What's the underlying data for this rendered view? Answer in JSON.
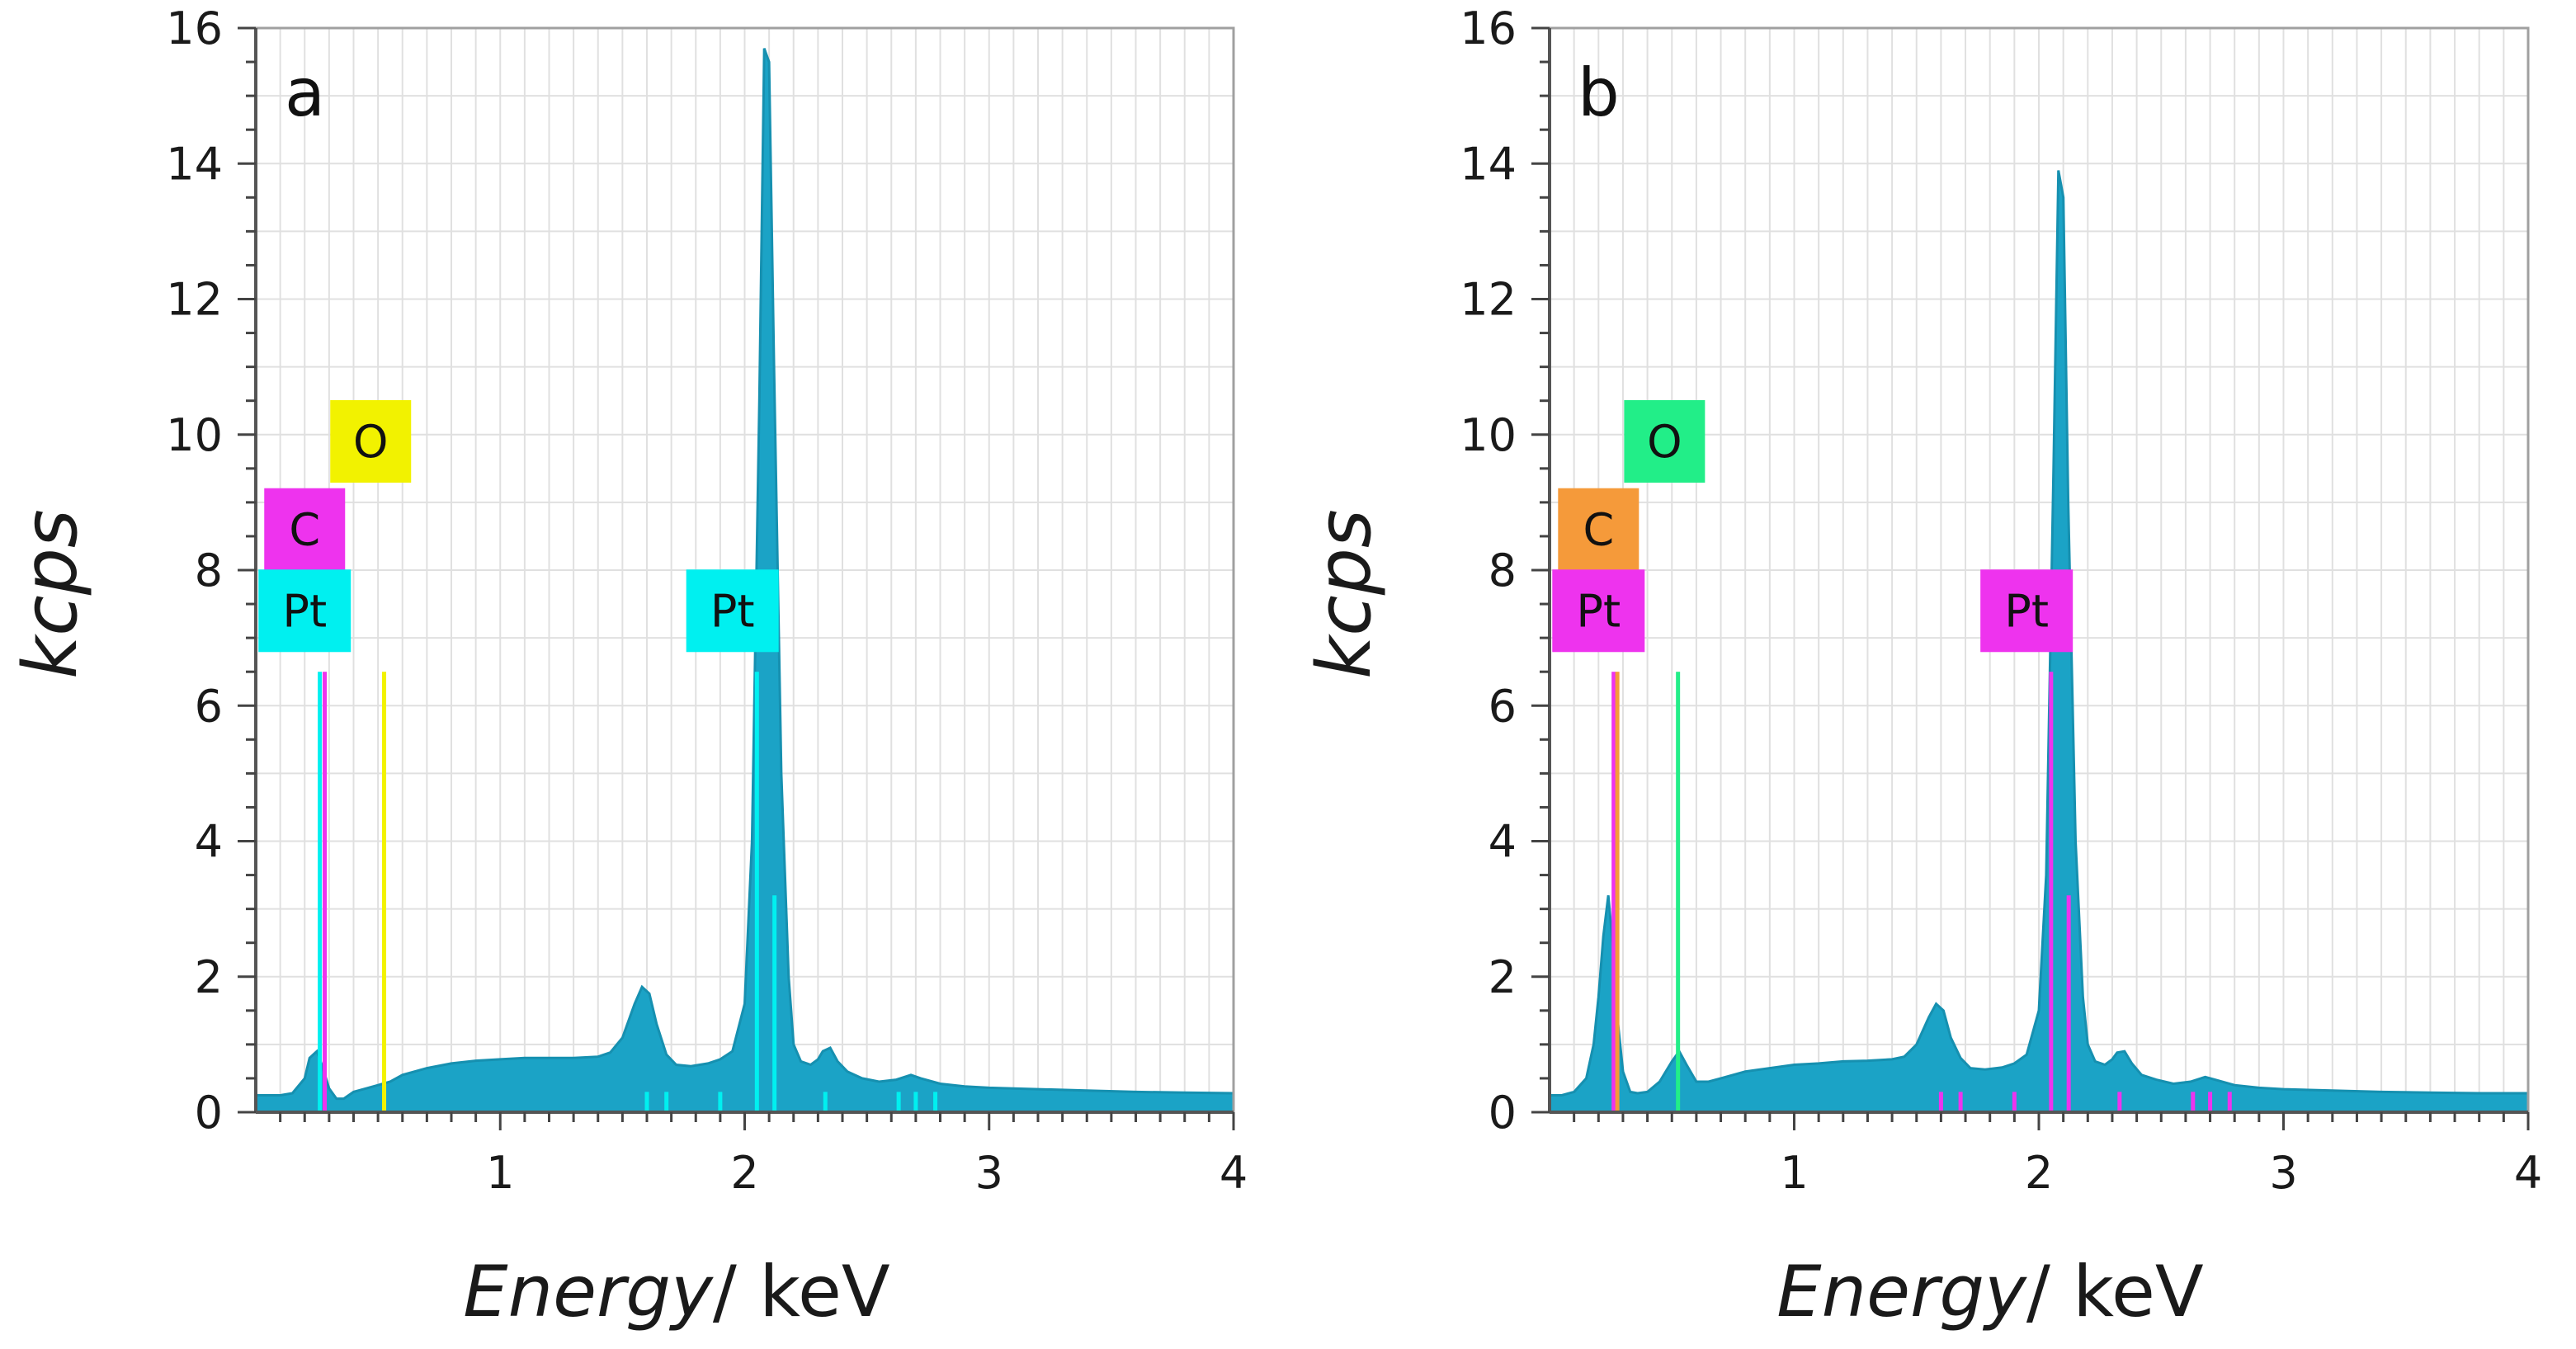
{
  "colors": {
    "spectrum": "#1ba3c6",
    "spectrum_edge": "#1690b0",
    "grid": "#e0e0e0",
    "plot_border": "#a0a0a0",
    "cyan": "#00f0f0",
    "magenta": "#ee33ee",
    "yellow": "#f2f200",
    "orange": "#f59a3a",
    "green": "#22ee88"
  },
  "chart_data": [
    {
      "type": "area",
      "panel_label": "a",
      "xlabel_italic": "Energy",
      "xlabel_unit": "/ keV",
      "ylabel": "kcps",
      "xlim": [
        0.0,
        4.0
      ],
      "ylim": [
        0,
        16
      ],
      "x_ticks": [
        "1",
        "2",
        "3",
        "4"
      ],
      "y_ticks": [
        "0",
        "2",
        "4",
        "6",
        "8",
        "10",
        "12",
        "14",
        "16"
      ],
      "spectrum": {
        "x": [
          0.0,
          0.05,
          0.1,
          0.15,
          0.2,
          0.22,
          0.25,
          0.27,
          0.3,
          0.33,
          0.36,
          0.4,
          0.45,
          0.5,
          0.55,
          0.6,
          0.7,
          0.8,
          0.9,
          1.0,
          1.1,
          1.2,
          1.3,
          1.4,
          1.45,
          1.5,
          1.55,
          1.58,
          1.61,
          1.64,
          1.68,
          1.72,
          1.78,
          1.85,
          1.9,
          1.95,
          2.0,
          2.03,
          2.06,
          2.08,
          2.1,
          2.12,
          2.15,
          2.18,
          2.2,
          2.23,
          2.27,
          2.3,
          2.32,
          2.35,
          2.38,
          2.42,
          2.48,
          2.55,
          2.62,
          2.68,
          2.72,
          2.8,
          2.9,
          3.0,
          3.2,
          3.4,
          3.6,
          3.8,
          4.0
        ],
        "y": [
          0.25,
          0.25,
          0.25,
          0.28,
          0.5,
          0.8,
          0.9,
          0.7,
          0.35,
          0.2,
          0.2,
          0.3,
          0.35,
          0.4,
          0.45,
          0.55,
          0.65,
          0.72,
          0.76,
          0.78,
          0.8,
          0.8,
          0.8,
          0.82,
          0.88,
          1.1,
          1.6,
          1.85,
          1.75,
          1.3,
          0.85,
          0.7,
          0.68,
          0.72,
          0.78,
          0.9,
          1.6,
          4.0,
          10.5,
          15.7,
          15.5,
          11.0,
          5.0,
          2.0,
          1.0,
          0.75,
          0.7,
          0.78,
          0.9,
          0.95,
          0.75,
          0.6,
          0.5,
          0.45,
          0.48,
          0.55,
          0.5,
          0.42,
          0.38,
          0.36,
          0.34,
          0.32,
          0.3,
          0.29,
          0.28
        ]
      },
      "element_lines": [
        {
          "x": 0.262,
          "height": 6.5,
          "color": "#00f0f0"
        },
        {
          "x": 0.282,
          "height": 6.5,
          "color": "#ee33ee"
        },
        {
          "x": 0.525,
          "height": 6.5,
          "color": "#f2f200"
        },
        {
          "x": 2.05,
          "height": 6.5,
          "color": "#00f0f0"
        },
        {
          "x": 2.122,
          "height": 3.2,
          "color": "#00f0f0"
        },
        {
          "x": 1.6,
          "height": 0.3,
          "color": "#00f0f0"
        },
        {
          "x": 1.68,
          "height": 0.3,
          "color": "#00f0f0"
        },
        {
          "x": 1.9,
          "height": 0.3,
          "color": "#00f0f0"
        },
        {
          "x": 2.33,
          "height": 0.3,
          "color": "#00f0f0"
        },
        {
          "x": 2.63,
          "height": 0.3,
          "color": "#00f0f0"
        },
        {
          "x": 2.7,
          "height": 0.3,
          "color": "#00f0f0"
        },
        {
          "x": 2.78,
          "height": 0.3,
          "color": "#00f0f0"
        }
      ],
      "annotations": [
        {
          "text": "O",
          "x": 0.47,
          "y": 9.9,
          "color": "#f2f200"
        },
        {
          "text": "C",
          "x": 0.2,
          "y": 8.6,
          "color": "#ee33ee"
        },
        {
          "text": "Pt",
          "x": 0.2,
          "y": 7.4,
          "color": "#00f0f0"
        },
        {
          "text": "Pt",
          "x": 1.95,
          "y": 7.4,
          "color": "#00f0f0"
        }
      ]
    },
    {
      "type": "area",
      "panel_label": "b",
      "xlabel_italic": "Energy",
      "xlabel_unit": "/ keV",
      "ylabel": "kcps",
      "xlim": [
        0.0,
        4.0
      ],
      "ylim": [
        0,
        16
      ],
      "x_ticks": [
        "1",
        "2",
        "3",
        "4"
      ],
      "y_ticks": [
        "0",
        "2",
        "4",
        "6",
        "8",
        "10",
        "12",
        "14",
        "16"
      ],
      "spectrum": {
        "x": [
          0.0,
          0.05,
          0.1,
          0.15,
          0.18,
          0.2,
          0.22,
          0.24,
          0.26,
          0.28,
          0.3,
          0.33,
          0.36,
          0.4,
          0.45,
          0.5,
          0.53,
          0.56,
          0.6,
          0.65,
          0.7,
          0.8,
          0.9,
          1.0,
          1.1,
          1.2,
          1.3,
          1.4,
          1.45,
          1.5,
          1.55,
          1.58,
          1.61,
          1.64,
          1.68,
          1.72,
          1.78,
          1.85,
          1.9,
          1.95,
          2.0,
          2.03,
          2.06,
          2.08,
          2.1,
          2.12,
          2.15,
          2.18,
          2.2,
          2.23,
          2.27,
          2.3,
          2.32,
          2.35,
          2.38,
          2.42,
          2.48,
          2.55,
          2.62,
          2.68,
          2.72,
          2.8,
          2.9,
          3.0,
          3.2,
          3.4,
          3.6,
          3.8,
          4.0
        ],
        "y": [
          0.25,
          0.25,
          0.3,
          0.5,
          1.0,
          1.7,
          2.6,
          3.2,
          2.4,
          1.3,
          0.6,
          0.3,
          0.28,
          0.3,
          0.45,
          0.75,
          0.9,
          0.7,
          0.45,
          0.45,
          0.5,
          0.6,
          0.65,
          0.7,
          0.72,
          0.75,
          0.76,
          0.78,
          0.82,
          1.0,
          1.4,
          1.6,
          1.5,
          1.1,
          0.8,
          0.65,
          0.63,
          0.66,
          0.72,
          0.85,
          1.5,
          3.5,
          9.5,
          13.9,
          13.5,
          9.0,
          4.0,
          1.7,
          1.0,
          0.75,
          0.7,
          0.78,
          0.88,
          0.9,
          0.72,
          0.55,
          0.48,
          0.42,
          0.45,
          0.52,
          0.48,
          0.4,
          0.36,
          0.34,
          0.32,
          0.3,
          0.29,
          0.28,
          0.28
        ]
      },
      "element_lines": [
        {
          "x": 0.262,
          "height": 6.5,
          "color": "#ee33ee"
        },
        {
          "x": 0.277,
          "height": 6.5,
          "color": "#f59a3a"
        },
        {
          "x": 0.525,
          "height": 6.5,
          "color": "#22ee88"
        },
        {
          "x": 2.05,
          "height": 6.5,
          "color": "#ee33ee"
        },
        {
          "x": 2.122,
          "height": 3.2,
          "color": "#ee33ee"
        },
        {
          "x": 1.6,
          "height": 0.3,
          "color": "#ee33ee"
        },
        {
          "x": 1.68,
          "height": 0.3,
          "color": "#ee33ee"
        },
        {
          "x": 1.9,
          "height": 0.3,
          "color": "#ee33ee"
        },
        {
          "x": 2.33,
          "height": 0.3,
          "color": "#ee33ee"
        },
        {
          "x": 2.63,
          "height": 0.3,
          "color": "#ee33ee"
        },
        {
          "x": 2.7,
          "height": 0.3,
          "color": "#ee33ee"
        },
        {
          "x": 2.78,
          "height": 0.3,
          "color": "#ee33ee"
        }
      ],
      "annotations": [
        {
          "text": "O",
          "x": 0.47,
          "y": 9.9,
          "color": "#22ee88"
        },
        {
          "text": "C",
          "x": 0.2,
          "y": 8.6,
          "color": "#f59a3a"
        },
        {
          "text": "Pt",
          "x": 0.2,
          "y": 7.4,
          "color": "#ee33ee"
        },
        {
          "text": "Pt",
          "x": 1.95,
          "y": 7.4,
          "color": "#ee33ee"
        }
      ]
    }
  ]
}
